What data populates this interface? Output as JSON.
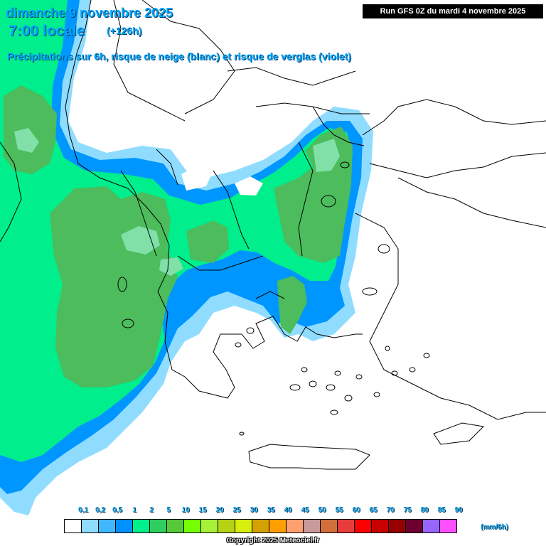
{
  "header": {
    "title_date": "dimanche 9 novembre 2025",
    "title_time": "7:00 locale",
    "forecast_offset": "(+126h)",
    "subtitle": "Précipitations sur 6h, risque de neige (blanc) et risque de verglas (violet)",
    "run_info": "Run GFS 0Z du mardi 4 novembre 2025"
  },
  "legend": {
    "unit": "(mm/6h)",
    "thresholds": [
      "0,1",
      "0,2",
      "0,5",
      "1",
      "2",
      "5",
      "10",
      "15",
      "20",
      "25",
      "30",
      "35",
      "40",
      "45",
      "50",
      "55",
      "60",
      "65",
      "70",
      "75",
      "80",
      "85",
      "90"
    ],
    "colors": [
      "#ffffff",
      "#8fdcff",
      "#40b8ff",
      "#0090ff",
      "#00f08a",
      "#30cd60",
      "#56c83a",
      "#74ff00",
      "#a6f03a",
      "#b6d214",
      "#d8ee0c",
      "#d4a200",
      "#ff9e00",
      "#ffa070",
      "#c89a9a",
      "#d26e3c",
      "#e83c3c",
      "#ff0000",
      "#c80000",
      "#960000",
      "#6e0030",
      "#9666ff",
      "#ff50ff"
    ]
  },
  "palette": {
    "dry": "#ffffff",
    "light_blue": "#8fdcff",
    "blue": "#0096ff",
    "teal": "#00ee8c",
    "green": "#4cbc5c",
    "coast": "#000000"
  },
  "copyright": "Copyright 2025 Meteociel.fr"
}
